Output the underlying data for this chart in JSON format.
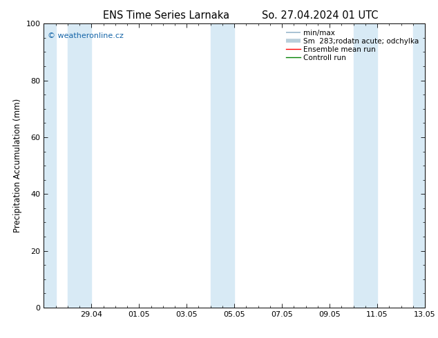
{
  "title_left": "ENS Time Series Larnaka",
  "title_right": "So. 27.04.2024 01 UTC",
  "ylabel": "Precipitation Accumulation (mm)",
  "ylim": [
    0,
    100
  ],
  "yticks": [
    0,
    20,
    40,
    60,
    80,
    100
  ],
  "xlim": [
    0,
    16
  ],
  "xtick_positions": [
    2,
    4,
    6,
    8,
    10,
    12,
    14,
    16
  ],
  "xtick_labels": [
    "29.04",
    "01.05",
    "03.05",
    "05.05",
    "07.05",
    "09.05",
    "11.05",
    "13.05"
  ],
  "watermark": "© weatheronline.cz",
  "legend_entries": [
    {
      "label": "min/max",
      "color": "#a8c8d8",
      "lw": 1.2
    },
    {
      "label": "Sm  283;rodatn acute; odchylka",
      "color": "#c0d8e8",
      "lw": 4
    },
    {
      "label": "Ensemble mean run",
      "color": "red",
      "lw": 1.0
    },
    {
      "label": "Controll run",
      "color": "green",
      "lw": 1.0
    }
  ],
  "band_color": "#d8eaf5",
  "background_color": "#ffffff",
  "plot_bg_color": "#ffffff",
  "title_fontsize": 10.5,
  "label_fontsize": 8.5,
  "tick_fontsize": 8,
  "legend_fontsize": 7.5,
  "watermark_fontsize": 8,
  "band_definitions": [
    [
      0.0,
      0.5
    ],
    [
      1.0,
      2.0
    ],
    [
      7.0,
      8.0
    ],
    [
      13.0,
      14.0
    ],
    [
      15.5,
      16.0
    ]
  ]
}
